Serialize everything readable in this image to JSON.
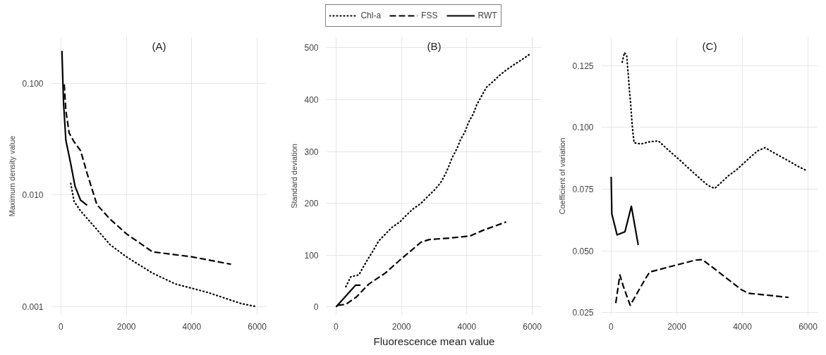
{
  "chart_data": [
    {
      "type": "line",
      "title": "(A)",
      "ylabel": "Maximum density value",
      "log": "y",
      "grid": true,
      "xlim": [
        -300,
        6300
      ],
      "xticks": [
        0,
        2000,
        4000,
        6000
      ],
      "ylim": [
        0.00084,
        0.26
      ],
      "yticks": [
        {
          "value": 0.001,
          "label": "0.001"
        },
        {
          "value": 0.01,
          "label": "0.010"
        },
        {
          "value": 0.1,
          "label": "0.100"
        }
      ],
      "series": [
        {
          "color": "#000000",
          "line_style": "dotted",
          "x": [
            300,
            400,
            600,
            1000,
            1500,
            2000,
            2800,
            3500,
            4500,
            5500,
            6000
          ],
          "values": [
            0.0127,
            0.0088,
            0.0072,
            0.0053,
            0.0036,
            0.0028,
            0.002,
            0.0016,
            0.00134,
            0.00107,
            0.001
          ]
        },
        {
          "color": "#000000",
          "line_style": "dashed",
          "x": [
            100,
            150,
            250,
            400,
            600,
            800,
            1100,
            1500,
            2000,
            2800,
            4000,
            5200
          ],
          "values": [
            0.098,
            0.057,
            0.036,
            0.03,
            0.025,
            0.0156,
            0.0082,
            0.0061,
            0.0045,
            0.0031,
            0.0028,
            0.0024
          ]
        },
        {
          "color": "#000000",
          "line_style": "solid",
          "x": [
            30,
            80,
            150,
            300,
            430,
            600,
            800
          ],
          "values": [
            0.195,
            0.066,
            0.031,
            0.019,
            0.012,
            0.009,
            0.0081
          ]
        }
      ]
    },
    {
      "type": "line",
      "title": "(B)",
      "ylabel": "Standard deviation",
      "xlabel": "Fluorescence mean value",
      "legend": "top",
      "grid": true,
      "xlim": [
        -300,
        6300
      ],
      "xticks": [
        0,
        2000,
        4000,
        6000
      ],
      "ylim": [
        -16,
        521
      ],
      "yticks": [
        0,
        100,
        200,
        300,
        400,
        500
      ],
      "series": [
        {
          "name": "Chl-a",
          "color": "#000000",
          "line_style": "dotted",
          "x": [
            300,
            450,
            700,
            850,
            1000,
            1150,
            1300,
            1500,
            1700,
            1950,
            2150,
            2350,
            2600,
            2800,
            3000,
            3200,
            3350,
            3450,
            3550,
            3700,
            3800,
            3950,
            4050,
            4200,
            4300,
            4450,
            4600,
            4800,
            5000,
            5200,
            5450,
            5700,
            5950
          ],
          "values": [
            39,
            58,
            62,
            79,
            95,
            110,
            127,
            140,
            153,
            164,
            177,
            189,
            200,
            213,
            225,
            240,
            257,
            272,
            288,
            306,
            322,
            339,
            356,
            373,
            390,
            407,
            424,
            435,
            447,
            457,
            468,
            478,
            489
          ]
        },
        {
          "name": "FSS",
          "color": "#000000",
          "line_style": "dashed",
          "x": [
            50,
            300,
            620,
            1000,
            1500,
            2000,
            2600,
            2850,
            3500,
            4100,
            4500,
            5200
          ],
          "values": [
            3,
            5,
            19,
            44,
            65,
            93,
            125,
            130,
            133,
            137,
            148,
            164
          ]
        },
        {
          "name": "RWT",
          "color": "#000000",
          "line_style": "solid",
          "x": [
            0,
            300,
            600,
            750
          ],
          "values": [
            0,
            21,
            42,
            42
          ]
        }
      ]
    },
    {
      "type": "line",
      "title": "(C)",
      "ylabel": "Coefficient of variation",
      "grid": true,
      "xlim": [
        -300,
        6300
      ],
      "xticks": [
        0,
        2000,
        4000,
        6000
      ],
      "ylim": [
        0.024,
        0.1366
      ],
      "yticks": [
        0.025,
        {
          "value": 0.05,
          "label": "0.050"
        },
        0.075,
        {
          "value": 0.1,
          "label": "0.100"
        },
        0.125
      ],
      "series": [
        {
          "color": "#000000",
          "line_style": "dotted",
          "x": [
            335,
            405,
            475,
            497,
            524,
            545,
            566,
            594,
            615,
            636,
            664,
            699,
            909,
            1175,
            1441,
            1664,
            1874,
            2098,
            2308,
            2517,
            2734,
            2944,
            3154,
            3378,
            3587,
            3818,
            4028,
            4252,
            4462,
            4692,
            4937,
            5196,
            5441,
            5685,
            5944
          ],
          "values": [
            0.1264,
            0.1303,
            0.129,
            0.125,
            0.121,
            0.117,
            0.1135,
            0.1097,
            0.1056,
            0.1017,
            0.0977,
            0.0938,
            0.0933,
            0.0942,
            0.0945,
            0.0918,
            0.0893,
            0.0867,
            0.0841,
            0.0816,
            0.079,
            0.0766,
            0.0753,
            0.078,
            0.0806,
            0.0828,
            0.0854,
            0.0881,
            0.0905,
            0.0918,
            0.0899,
            0.088,
            0.0862,
            0.0843,
            0.0826
          ]
        },
        {
          "color": "#000000",
          "line_style": "dashed",
          "x": [
            140,
            265,
            370,
            475,
            580,
            1035,
            1175,
            2573,
            2783,
            3972,
            4182,
            5406
          ],
          "values": [
            0.0289,
            0.0403,
            0.0357,
            0.0318,
            0.028,
            0.0386,
            0.0415,
            0.0463,
            0.0465,
            0.0343,
            0.0329,
            0.0312
          ]
        },
        {
          "color": "#000000",
          "line_style": "solid",
          "x": [
            0,
            20,
            180,
            420,
            615,
            825
          ],
          "values": [
            0.08,
            0.065,
            0.0565,
            0.0578,
            0.0681,
            0.0524
          ]
        }
      ]
    }
  ]
}
